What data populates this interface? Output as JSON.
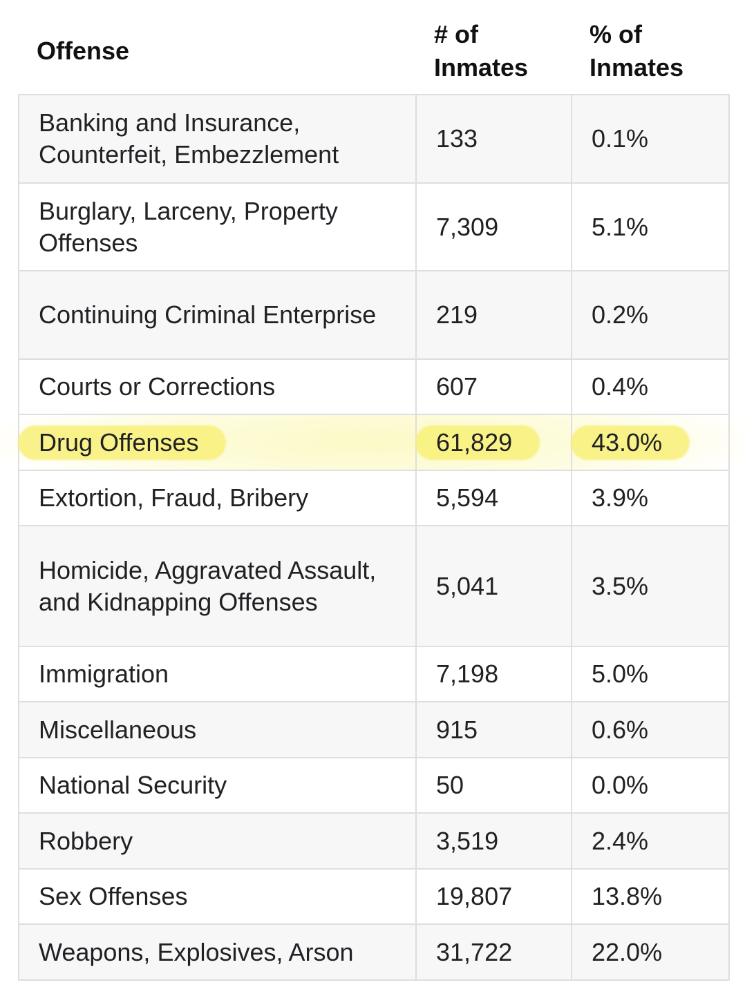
{
  "header": {
    "offense": "Offense",
    "count_line1": "# of",
    "count_line2": "Inmates",
    "pct_line1": "% of",
    "pct_line2": "Inmates"
  },
  "rows": [
    {
      "offense": "Banking and Insurance, Counterfeit, Embezzlement",
      "count": "133",
      "pct": "0.1%"
    },
    {
      "offense": "Burglary, Larceny, Property Offenses",
      "count": "7,309",
      "pct": "5.1%"
    },
    {
      "offense": "Continuing Criminal Enterprise",
      "count": "219",
      "pct": "0.2%"
    },
    {
      "offense": "Courts or Corrections",
      "count": "607",
      "pct": "0.4%"
    },
    {
      "offense": "Drug Offenses",
      "count": "61,829",
      "pct": "43.0%"
    },
    {
      "offense": "Extortion, Fraud, Bribery",
      "count": "5,594",
      "pct": "3.9%"
    },
    {
      "offense": "Homicide, Aggravated Assault, and Kidnapping Offenses",
      "count": "5,041",
      "pct": "3.5%"
    },
    {
      "offense": "Immigration",
      "count": "7,198",
      "pct": "5.0%"
    },
    {
      "offense": "Miscellaneous",
      "count": "915",
      "pct": "0.6%"
    },
    {
      "offense": "National Security",
      "count": "50",
      "pct": "0.0%"
    },
    {
      "offense": "Robbery",
      "count": "3,519",
      "pct": "2.4%"
    },
    {
      "offense": "Sex Offenses",
      "count": "19,807",
      "pct": "13.8%"
    },
    {
      "offense": "Weapons, Explosives, Arson",
      "count": "31,722",
      "pct": "22.0%"
    }
  ],
  "highlight_color": "#f8f078"
}
